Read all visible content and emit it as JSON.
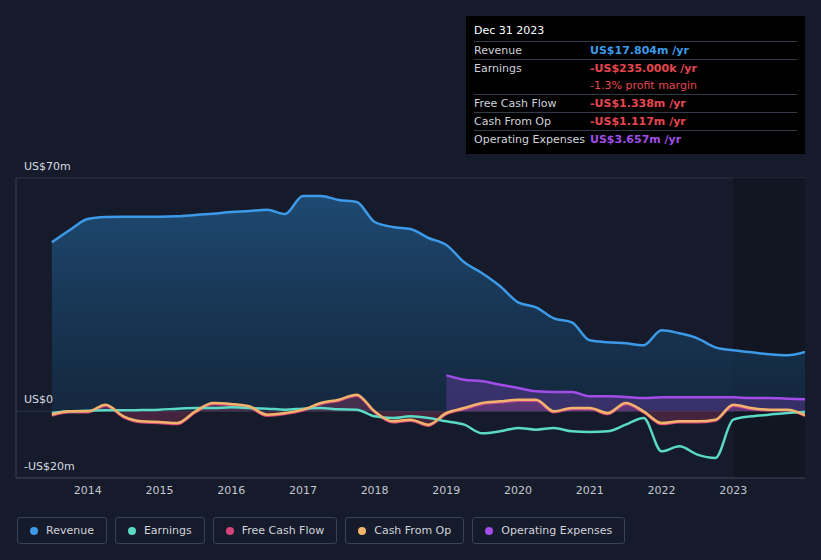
{
  "chart_data": {
    "type": "area",
    "x": [
      2013.5,
      2013.75,
      2014.0,
      2014.25,
      2014.5,
      2014.75,
      2015.0,
      2015.25,
      2015.5,
      2015.75,
      2016.0,
      2016.25,
      2016.5,
      2016.75,
      2017.0,
      2017.25,
      2017.5,
      2017.75,
      2018.0,
      2018.25,
      2018.5,
      2018.75,
      2019.0,
      2019.25,
      2019.5,
      2019.75,
      2020.0,
      2020.25,
      2020.5,
      2020.75,
      2021.0,
      2021.25,
      2021.5,
      2021.75,
      2022.0,
      2022.25,
      2022.5,
      2022.75,
      2023.0,
      2023.25,
      2023.5,
      2023.75,
      2024.0
    ],
    "series": [
      {
        "name": "Revenue",
        "color": "#3d9ae8",
        "type": "area",
        "values": [
          50.7,
          54.4,
          57.7,
          58.3,
          58.4,
          58.4,
          58.4,
          58.5,
          58.9,
          59.3,
          59.8,
          60.1,
          60.5,
          59.2,
          64.6,
          64.6,
          63.4,
          62.8,
          56.8,
          55.3,
          54.7,
          52.0,
          49.9,
          44.7,
          41.4,
          37.5,
          32.7,
          31.2,
          27.9,
          26.7,
          21.3,
          20.7,
          20.4,
          19.8,
          24.3,
          23.4,
          21.9,
          19.2,
          18.3,
          17.7,
          17.1,
          16.8,
          17.804
        ]
      },
      {
        "name": "Earnings",
        "color": "#5ad9c5",
        "type": "line",
        "values": [
          -0.5,
          0,
          0.2,
          0.3,
          0.3,
          0.4,
          0.5,
          0.8,
          1,
          1,
          1.2,
          1,
          0.8,
          0.5,
          0.8,
          1,
          0.6,
          0.5,
          -1.5,
          -2,
          -1.5,
          -2,
          -3,
          -4,
          -6.6,
          -6,
          -5,
          -5.5,
          -5,
          -6,
          -6.2,
          -6,
          -4,
          -2,
          -12,
          -10.5,
          -13,
          -14,
          -2.5,
          -1.5,
          -1,
          -0.5,
          -0.235
        ]
      },
      {
        "name": "Free Cash Flow",
        "color": "#d6447a",
        "type": "area",
        "values": [
          -1.3,
          -0.3,
          -0.3,
          1.7,
          -1.8,
          -3.3,
          -3.5,
          -3.8,
          -0.3,
          2.2,
          1.9,
          1.2,
          -1.3,
          -0.8,
          0.2,
          2.2,
          3.2,
          4.7,
          -0.3,
          -3.3,
          -2.8,
          -4.3,
          -0.8,
          0.7,
          2.2,
          2.7,
          3.2,
          3.2,
          -0.3,
          0.7,
          0.7,
          -0.8,
          2.2,
          -0.3,
          -3.8,
          -3.3,
          -3.3,
          -2.8,
          1.7,
          0.7,
          0.3,
          0.3,
          -1.338
        ]
      },
      {
        "name": "Cash From Op",
        "color": "#f2b36b",
        "type": "line",
        "values": [
          -1,
          0,
          0,
          2,
          -1.5,
          -3,
          -3.2,
          -3.5,
          0,
          2.5,
          2.2,
          1.5,
          -1,
          -0.5,
          0.5,
          2.5,
          3.5,
          5,
          0,
          -3,
          -2.5,
          -4,
          -0.5,
          1,
          2.5,
          3,
          3.5,
          3.5,
          0,
          1,
          1,
          -0.5,
          2.5,
          0,
          -3.5,
          -3,
          -3,
          -2.5,
          2,
          1,
          0.5,
          0.5,
          -1.117
        ]
      },
      {
        "name": "Operating Expenses",
        "color": "#a24de8",
        "type": "area",
        "values": [
          null,
          null,
          null,
          null,
          null,
          null,
          null,
          null,
          null,
          null,
          null,
          null,
          null,
          null,
          null,
          null,
          null,
          null,
          null,
          null,
          null,
          null,
          10.8,
          9.5,
          9,
          8,
          7,
          6,
          5.8,
          5.8,
          4.5,
          4.5,
          4.3,
          4,
          4.2,
          4.2,
          4.2,
          4.2,
          4.2,
          4,
          4,
          3.8,
          3.657
        ]
      }
    ],
    "xlim": [
      2013,
      2024
    ],
    "xticks": [
      2014,
      2015,
      2016,
      2017,
      2018,
      2019,
      2020,
      2021,
      2022,
      2023
    ],
    "ylim": [
      -20,
      70
    ],
    "yticks": [
      {
        "value": -20,
        "label": "-US$20m"
      },
      {
        "value": 0,
        "label": "US$0"
      },
      {
        "value": 70,
        "label": "US$70m"
      }
    ],
    "grid": true,
    "legend": "bottom left",
    "shaded_range": [
      2023,
      2024
    ],
    "tooltip": {
      "title": "Dec 31 2023",
      "rows": [
        {
          "label": "Revenue",
          "value": "US$17.804m /yr",
          "color": "#3d9ae8"
        },
        {
          "label": "Earnings",
          "value": "-US$235.000k /yr",
          "color": "#e8464f"
        },
        {
          "value": "-1.3% profit margin",
          "color": "#e8464f"
        },
        {
          "label": "Free Cash Flow",
          "value": "-US$1.338m /yr",
          "color": "#e8464f"
        },
        {
          "label": "Cash From Op",
          "value": "-US$1.117m /yr",
          "color": "#e8464f"
        },
        {
          "label": "Operating Expenses",
          "value": "US$3.657m /yr",
          "color": "#a24de8"
        }
      ]
    }
  }
}
